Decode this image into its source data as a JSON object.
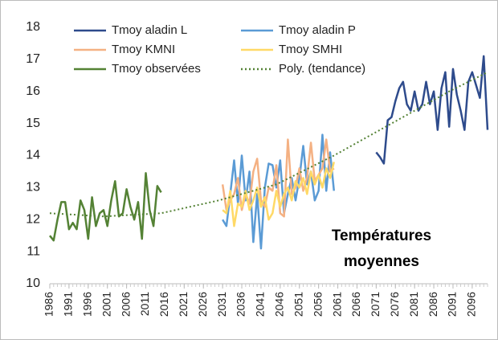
{
  "chart_data": {
    "type": "line",
    "annotation": [
      "Températures",
      "moyennes"
    ],
    "xlim": [
      1986,
      2100
    ],
    "xticks": [
      1986,
      1991,
      1996,
      2001,
      2006,
      2011,
      2016,
      2021,
      2026,
      2031,
      2036,
      2041,
      2046,
      2051,
      2056,
      2061,
      2066,
      2071,
      2076,
      2081,
      2086,
      2091,
      2096
    ],
    "ylim": [
      10,
      18
    ],
    "yticks": [
      10,
      11,
      12,
      13,
      14,
      15,
      16,
      17,
      18
    ],
    "series": [
      {
        "name": "Tmoy aladin L",
        "color": "#2e4b8c",
        "x": [
          2071,
          2072,
          2073,
          2074,
          2075,
          2076,
          2077,
          2078,
          2079,
          2080,
          2081,
          2082,
          2083,
          2084,
          2085,
          2086,
          2087,
          2088,
          2089,
          2090,
          2091,
          2092,
          2093,
          2094,
          2095,
          2096,
          2097,
          2098,
          2099,
          2100
        ],
        "values": [
          14.1,
          13.95,
          13.75,
          15.1,
          15.2,
          15.7,
          16.1,
          16.3,
          15.6,
          15.4,
          16.0,
          15.4,
          15.6,
          16.3,
          15.6,
          16.0,
          14.8,
          16.1,
          16.6,
          14.9,
          16.7,
          15.9,
          15.4,
          14.8,
          16.3,
          16.6,
          16.2,
          15.8,
          17.1,
          14.8
        ]
      },
      {
        "name": "Tmoy aladin P",
        "color": "#5b9bd5",
        "x": [
          2031,
          2032,
          2033,
          2034,
          2035,
          2036,
          2037,
          2038,
          2039,
          2040,
          2041,
          2042,
          2043,
          2044,
          2045,
          2046,
          2047,
          2048,
          2049,
          2050,
          2051,
          2052,
          2053,
          2054,
          2055,
          2056,
          2057,
          2058,
          2059,
          2060
        ],
        "values": [
          12.0,
          11.8,
          12.8,
          13.85,
          12.5,
          14.0,
          12.6,
          13.5,
          11.3,
          12.8,
          11.1,
          13.0,
          13.75,
          13.7,
          13.0,
          13.85,
          12.2,
          12.8,
          13.3,
          12.6,
          13.3,
          14.3,
          13.1,
          13.5,
          12.6,
          12.9,
          14.65,
          12.9,
          14.1,
          12.9
        ]
      },
      {
        "name": "Tmoy KMNI",
        "color": "#f4b183",
        "x": [
          2031,
          2032,
          2033,
          2034,
          2035,
          2036,
          2037,
          2038,
          2039,
          2040,
          2041,
          2042,
          2043,
          2044,
          2045,
          2046,
          2047,
          2048,
          2049,
          2050,
          2051,
          2052,
          2053,
          2054,
          2055,
          2056,
          2057,
          2058,
          2059,
          2060
        ],
        "values": [
          13.1,
          12.3,
          12.6,
          12.8,
          13.3,
          12.3,
          12.8,
          12.5,
          13.5,
          13.9,
          12.6,
          12.4,
          13.0,
          12.9,
          13.7,
          12.2,
          12.1,
          14.5,
          12.8,
          13.0,
          13.6,
          12.9,
          13.3,
          14.4,
          13.2,
          13.4,
          13.6,
          14.5,
          13.5,
          13.6
        ]
      },
      {
        "name": "Tmoy SMHI",
        "color": "#ffd966",
        "x": [
          2031,
          2032,
          2033,
          2034,
          2035,
          2036,
          2037,
          2038,
          2039,
          2040,
          2041,
          2042,
          2043,
          2044,
          2045,
          2046,
          2047,
          2048,
          2049,
          2050,
          2051,
          2052,
          2053,
          2054,
          2055,
          2056,
          2057,
          2058,
          2059,
          2060
        ],
        "values": [
          12.3,
          12.2,
          12.9,
          11.8,
          12.5,
          12.4,
          12.9,
          12.3,
          12.6,
          13.0,
          12.4,
          12.7,
          12.0,
          12.2,
          12.9,
          12.4,
          12.8,
          13.0,
          12.6,
          13.2,
          13.0,
          13.3,
          12.8,
          13.5,
          13.1,
          13.4,
          13.0,
          13.6,
          13.3,
          13.8
        ]
      },
      {
        "name": "Tmoy observées",
        "color": "#548235",
        "x": [
          1986,
          1987,
          1988,
          1989,
          1990,
          1991,
          1992,
          1993,
          1994,
          1995,
          1996,
          1997,
          1998,
          1999,
          2000,
          2001,
          2002,
          2003,
          2004,
          2005,
          2006,
          2007,
          2008,
          2009,
          2010,
          2011,
          2012,
          2013,
          2014,
          2015
        ],
        "values": [
          11.5,
          11.35,
          12.0,
          12.55,
          12.55,
          11.7,
          11.9,
          11.7,
          12.6,
          12.3,
          11.4,
          12.7,
          11.8,
          12.2,
          12.3,
          11.8,
          12.6,
          13.2,
          12.1,
          12.2,
          12.95,
          12.4,
          12.0,
          12.55,
          11.4,
          13.45,
          12.3,
          11.8,
          13.05,
          12.85
        ]
      },
      {
        "name": "Poly. (tendance)",
        "color": "#548235",
        "dashed": true,
        "x": [
          1986,
          2000,
          2015,
          2030,
          2045,
          2060,
          2075,
          2090,
          2100
        ],
        "values": [
          12.2,
          12.1,
          12.2,
          12.6,
          13.1,
          14.0,
          15.0,
          16.0,
          16.6
        ]
      }
    ]
  }
}
